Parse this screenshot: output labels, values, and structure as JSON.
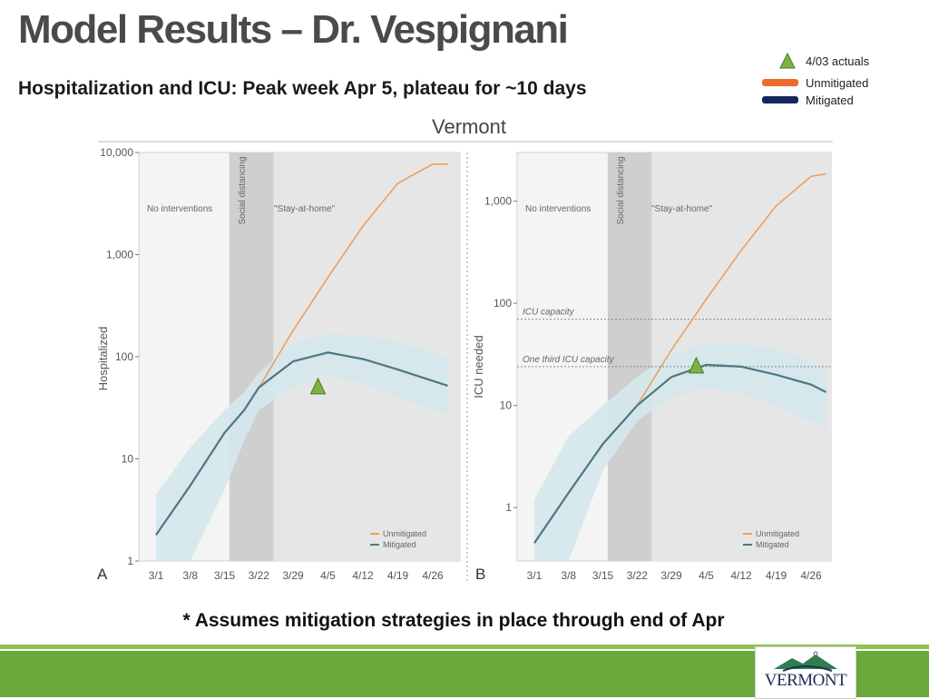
{
  "slide": {
    "title": "Model Results – Dr. Vespignani",
    "subtitle": "Hospitalization and ICU:  Peak week Apr 5, plateau for ~10 days",
    "footnote": "* Assumes mitigation strategies in place through end of Apr",
    "logo_text": "VERMONT"
  },
  "legend": [
    {
      "label": "4/03 actuals",
      "symbol": "triangle",
      "color": "#7cb342"
    },
    {
      "label": "Unmitigated",
      "symbol": "bar",
      "color": "#ee6a2b"
    },
    {
      "label": "Mitigated",
      "symbol": "bar",
      "color": "#14285a"
    }
  ],
  "colors": {
    "unmitigated": "#ef9f5b",
    "mitigated": "#4d7785",
    "band": "#d4e8ec",
    "actual": "#7cb342",
    "shade": "#dcdcdc"
  },
  "chart_data": {
    "title": "Vermont",
    "panels": [
      {
        "panel_label": "A",
        "type": "line",
        "ylabel": "Hospitalized",
        "yscale": "log",
        "ylim": [
          1,
          10000
        ],
        "yticks": [
          "1",
          "10",
          "100",
          "1,000",
          "10,000"
        ],
        "xticks": [
          "3/1",
          "3/8",
          "3/15",
          "3/22",
          "3/29",
          "4/5",
          "4/12",
          "4/19",
          "4/26"
        ],
        "phase_labels": [
          "No interventions",
          "Social distancing",
          "\"Stay-at-home\""
        ],
        "series": [
          {
            "name": "Unmitigated",
            "x": [
              "3/1",
              "3/8",
              "3/15",
              "3/19",
              "3/22",
              "3/29",
              "4/5",
              "4/12",
              "4/19",
              "4/26",
              "4/29"
            ],
            "y": [
              1.8,
              5.5,
              18,
              30,
              50,
              180,
              600,
              1900,
              5000,
              7700,
              7700
            ]
          },
          {
            "name": "Mitigated",
            "x": [
              "3/1",
              "3/8",
              "3/15",
              "3/19",
              "3/22",
              "3/29",
              "4/5",
              "4/12",
              "4/19",
              "4/26",
              "4/29"
            ],
            "y": [
              1.8,
              5.5,
              18,
              30,
              50,
              90,
              110,
              95,
              75,
              58,
              52
            ]
          }
        ],
        "band": {
          "x": [
            "3/1",
            "3/8",
            "3/15",
            "3/19",
            "3/22",
            "3/29",
            "4/5",
            "4/12",
            "4/19",
            "4/26",
            "4/29"
          ],
          "lower": [
            1,
            1,
            5,
            15,
            30,
            50,
            65,
            55,
            40,
            30,
            28
          ],
          "upper": [
            4.5,
            13,
            30,
            45,
            70,
            135,
            170,
            160,
            140,
            110,
            95
          ]
        },
        "actuals": {
          "x": "4/3",
          "y": 50
        },
        "legend_items": [
          "Unmitigated",
          "Mitigated"
        ]
      },
      {
        "panel_label": "B",
        "type": "line",
        "ylabel": "ICU needed",
        "yscale": "log",
        "ylim": [
          0.3,
          3000
        ],
        "yticks": [
          "1",
          "10",
          "100",
          "1,000"
        ],
        "xticks": [
          "3/1",
          "3/8",
          "3/15",
          "3/22",
          "3/29",
          "4/5",
          "4/12",
          "4/19",
          "4/26"
        ],
        "phase_labels": [
          "No interventions",
          "Social distancing",
          "\"Stay-at-home\""
        ],
        "reference_lines": [
          {
            "label": "ICU capacity",
            "y": 70
          },
          {
            "label": "One third ICU capacity",
            "y": 24
          }
        ],
        "series": [
          {
            "name": "Unmitigated",
            "x": [
              "3/1",
              "3/8",
              "3/15",
              "3/22",
              "3/29",
              "4/5",
              "4/12",
              "4/19",
              "4/26",
              "4/29"
            ],
            "y": [
              0.45,
              1.4,
              4.2,
              10,
              35,
              110,
              330,
              900,
              1750,
              1850
            ]
          },
          {
            "name": "Mitigated",
            "x": [
              "3/1",
              "3/8",
              "3/15",
              "3/22",
              "3/29",
              "4/5",
              "4/12",
              "4/19",
              "4/26",
              "4/29"
            ],
            "y": [
              0.45,
              1.4,
              4.2,
              10,
              19,
              25,
              24,
              20,
              16,
              13.5
            ]
          }
        ],
        "band": {
          "x": [
            "3/1",
            "3/8",
            "3/15",
            "3/22",
            "3/29",
            "4/5",
            "4/12",
            "4/19",
            "4/26",
            "4/29"
          ],
          "lower": [
            0.3,
            0.3,
            2.3,
            7,
            12,
            15,
            13,
            10,
            7,
            6
          ],
          "upper": [
            1.2,
            5,
            10,
            19,
            32,
            40,
            40,
            36,
            27,
            22
          ]
        },
        "actuals": {
          "x": "4/3",
          "y": 24
        },
        "legend_items": [
          "Unmitigated",
          "Mitigated"
        ]
      }
    ]
  }
}
